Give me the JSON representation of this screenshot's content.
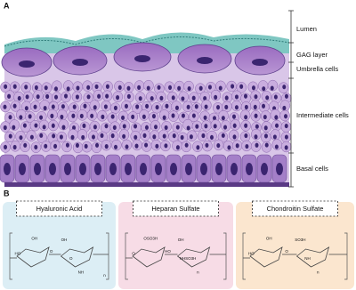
{
  "panel_a": {
    "label": "A",
    "layers": [
      "Lumen",
      "GAG layer",
      "Umbrella cells",
      "Intermediate cells",
      "Basal cells"
    ]
  },
  "panel_b": {
    "label": "B",
    "molecules": [
      {
        "name": "Hyaluronic Acid",
        "atoms": [
          "OH",
          "HO",
          "O",
          "O",
          "OH",
          "NH",
          "n"
        ]
      },
      {
        "name": "Heparan Sulfate",
        "atoms": [
          "OSO3H",
          "O",
          "HO",
          "NHSO3H",
          "OH",
          "n"
        ]
      },
      {
        "name": "Chondroitin Sulfate",
        "atoms": [
          "OH",
          "HO",
          "O",
          "NH",
          "SO3H",
          "n"
        ]
      }
    ]
  }
}
